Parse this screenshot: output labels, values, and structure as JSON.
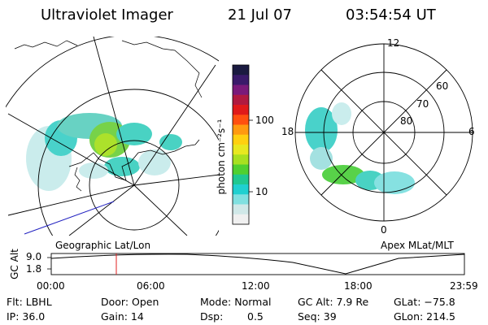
{
  "header": {
    "title": "Ultraviolet Imager",
    "date": "21 Jul 07",
    "time": "03:54:54 UT"
  },
  "colorbar": {
    "unit_label": "photon cm⁻²s⁻¹",
    "ticks": [
      "100",
      "10"
    ],
    "colors": [
      "#1a1a40",
      "#3a1a6a",
      "#7a1a7a",
      "#b01a40",
      "#e01a1a",
      "#ff5010",
      "#ff9a10",
      "#ffd010",
      "#e8e820",
      "#a8e020",
      "#50d030",
      "#20c890",
      "#20d0d0",
      "#80e0e0",
      "#d0e8e8",
      "#f0f0f0"
    ]
  },
  "left_panel": {
    "caption": "Geographic Lat/Lon"
  },
  "right_panel": {
    "caption": "Apex MLat/MLT",
    "lat_labels": [
      "80",
      "70",
      "60"
    ],
    "mlt_labels": {
      "top": "12",
      "left": "18",
      "right": "6",
      "bottom": "0"
    }
  },
  "timeline": {
    "axis_label": "GC Alt",
    "y_ticks": [
      "9.0",
      "1.8"
    ],
    "x_ticks": [
      "00:00",
      "06:00",
      "12:00",
      "18:00",
      "23:59"
    ]
  },
  "info": {
    "flt": "Flt: LBHL",
    "ip": "IP: 36.0",
    "door": "Door: Open",
    "gain": "Gain: 14",
    "mode": "Mode: Normal",
    "dsp_label": "Dsp:",
    "dsp_value": "0.5",
    "gcalt": "GC Alt: 7.9 Re",
    "seq": "Seq: 39",
    "glat": "GLat: −75.8",
    "glon": "GLon: 214.5"
  }
}
